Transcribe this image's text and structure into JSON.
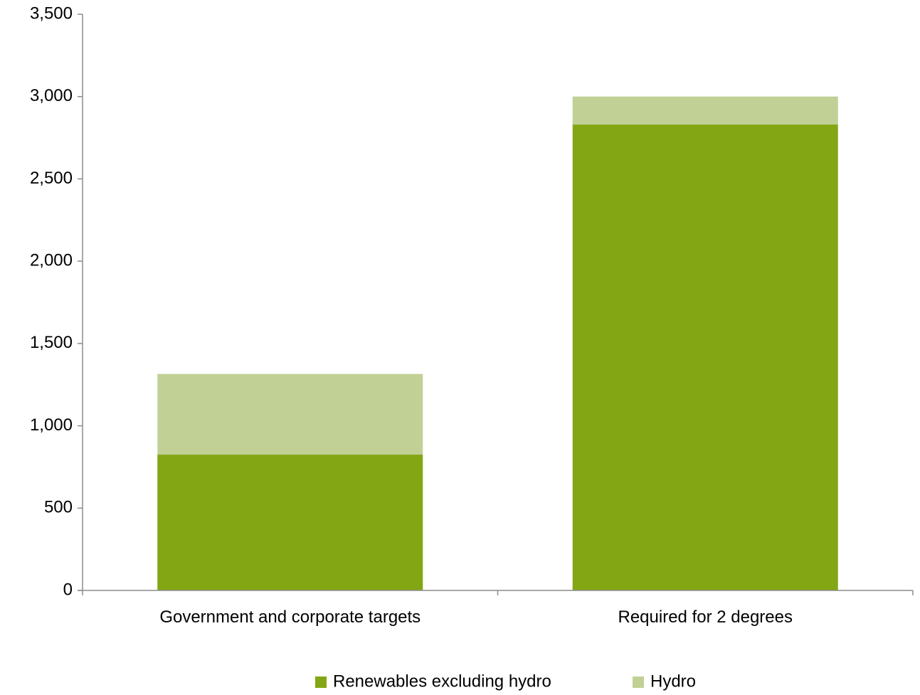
{
  "chart_data": {
    "type": "bar",
    "stacked": true,
    "categories": [
      "Government and corporate targets",
      "Required for 2 degrees"
    ],
    "series": [
      {
        "name": "Renewables excluding hydro",
        "color": "#83a614",
        "values": [
          825,
          2830
        ]
      },
      {
        "name": "Hydro",
        "color": "#c1d095",
        "values": [
          490,
          170
        ]
      }
    ],
    "ylim": [
      0,
      3500
    ],
    "yticks": [
      0,
      500,
      1000,
      1500,
      2000,
      2500,
      3000,
      3500
    ],
    "ytick_labels": [
      "0",
      "500",
      "1,000",
      "1,500",
      "2,000",
      "2,500",
      "3,000",
      "3,500"
    ],
    "grid": false,
    "legend": "bottom-center",
    "axis_color": "#8c8c8c"
  }
}
